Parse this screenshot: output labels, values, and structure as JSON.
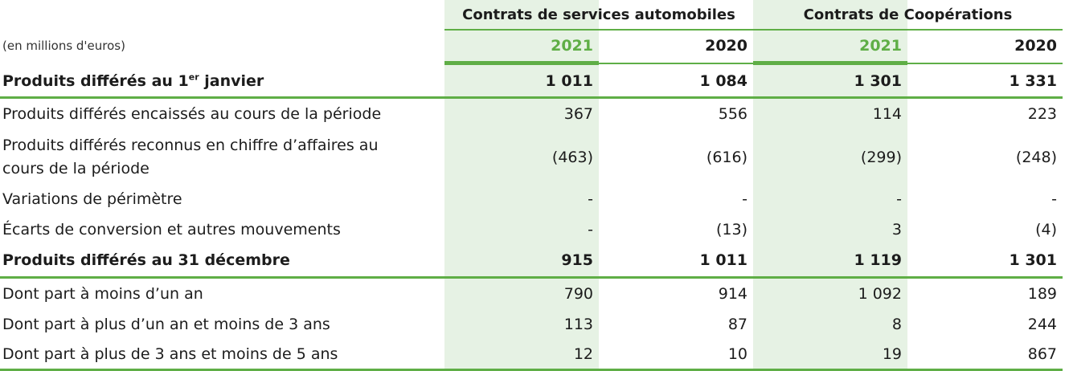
{
  "table": {
    "group_headers": [
      "Contrats de services automobiles",
      "Contrats de Coopérations"
    ],
    "unit_label": "(en millions d'euros)",
    "years": [
      "2021",
      "2020",
      "2021",
      "2020"
    ],
    "opening": {
      "label_main": "Produits différés au 1",
      "label_sup": "er",
      "label_end": " janvier",
      "values": [
        "1 011",
        "1 084",
        "1 301",
        "1 331"
      ]
    },
    "rows": [
      {
        "label": "Produits différés encaissés au cours de la période",
        "values": [
          "367",
          "556",
          "114",
          "223"
        ]
      },
      {
        "label": "Produits différés reconnus en chiffre d’affaires au cours de la période",
        "values": [
          "(463)",
          "(616)",
          "(299)",
          "(248)"
        ]
      },
      {
        "label": "Variations de périmètre",
        "values": [
          "-",
          "-",
          "-",
          "-"
        ]
      },
      {
        "label": "Écarts de conversion et autres mouvements",
        "values": [
          "-",
          "(13)",
          "3",
          "(4)"
        ]
      }
    ],
    "closing": {
      "label": "Produits différés au 31 décembre",
      "values": [
        "915",
        "1 011",
        "1 119",
        "1 301"
      ]
    },
    "detail_rows": [
      {
        "label": "Dont part à moins d’un an",
        "values": [
          "790",
          "914",
          "1 092",
          "189"
        ]
      },
      {
        "label": "Dont part à plus d’un an et moins de 3 ans",
        "values": [
          "113",
          "87",
          "8",
          "244"
        ]
      },
      {
        "label": "Dont part à plus de 3 ans et moins de 5 ans",
        "values": [
          "12",
          "10",
          "19",
          "867"
        ]
      }
    ],
    "colors": {
      "accent": "#5fae46",
      "shade": "#e6f2e4",
      "text": "#1c1c1c"
    }
  }
}
